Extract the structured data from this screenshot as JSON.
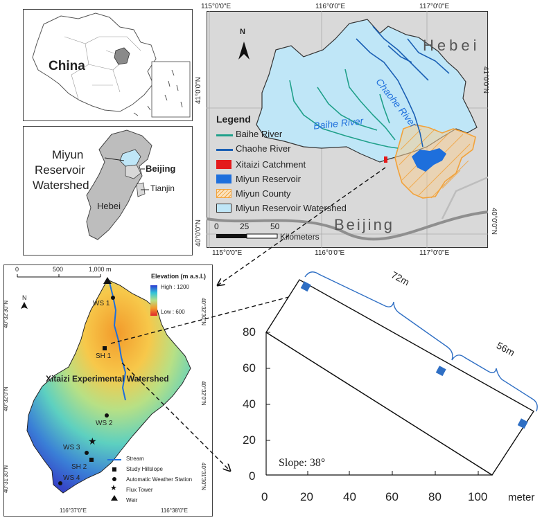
{
  "china_panel": {
    "label": "China"
  },
  "hebei_panel": {
    "watershed_label_1": "Miyun",
    "watershed_label_2": "Reservoir",
    "watershed_label_3": "Watershed",
    "beijing": "Beijing",
    "tianjin": "Tianjin",
    "hebei": "Hebei"
  },
  "main_map": {
    "lon_labels_top": [
      "115°0'0\"E",
      "116°0'0\"E",
      "117°0'0\"E"
    ],
    "lon_labels_bottom": [
      "115°0'0\"E",
      "116°0'0\"E",
      "117°0'0\"E"
    ],
    "lat_labels": [
      "41°0'0\"N",
      "40°0'0\"N"
    ],
    "hebei": "Hebei",
    "beijing": "Beijing",
    "baihe_river": "Baihe River",
    "chaohe_river": "Chaohe River",
    "north": "N",
    "legend": {
      "title": "Legend",
      "items": [
        {
          "label": "Baihe River",
          "color": "#1fa08a"
        },
        {
          "label": "Chaohe River",
          "color": "#1a5fb4"
        },
        {
          "label": "Xitaizi Catchment",
          "color": "#e41a1c"
        },
        {
          "label": "Miyun Reservoir",
          "color": "#1e6fdc"
        },
        {
          "label": "Miyun County",
          "color": "#f2a23a"
        },
        {
          "label": "Miyun Reservoir Watershed",
          "color": "#bfe6f7"
        }
      ]
    },
    "scale_ticks": [
      "0",
      "25",
      "50"
    ],
    "scale_unit": "Kilometers"
  },
  "watershed_map": {
    "scale_ticks": [
      "0",
      "500",
      "1,000 m"
    ],
    "elevation_title": "Elevation (m a.s.l.)",
    "elevation_high": "High : 1200",
    "elevation_low": "Low : 600",
    "north": "N",
    "title": "Xitaizi Experimental Watershed",
    "lat_labels_left": [
      "40°32'30\"N",
      "40°32'0\"N",
      "40°31'30\"N"
    ],
    "lat_labels_right": [
      "40°32'30\"N",
      "40°32'0\"N",
      "40°31'30\"N"
    ],
    "lon_labels": [
      "116°37'0\"E",
      "116°38'0\"E"
    ],
    "site_labels": [
      "WS 1",
      "SH 1",
      "WS 2",
      "WS 3",
      "SH 2",
      "WS 4"
    ],
    "legend": [
      {
        "label": "Stream",
        "symbol": "line"
      },
      {
        "label": "Study Hillslope",
        "symbol": "square"
      },
      {
        "label": "Automatic Weather Station",
        "symbol": "circle"
      },
      {
        "label": "Flux Tower",
        "symbol": "star"
      },
      {
        "label": "Weir",
        "symbol": "triangle"
      }
    ]
  },
  "hillslope": {
    "y_ticks": [
      "80",
      "60",
      "40",
      "20",
      "0"
    ],
    "x_ticks": [
      "0",
      "20",
      "40",
      "60",
      "80",
      "100"
    ],
    "x_unit": "meter",
    "slope_label": "Slope: 38°",
    "distance_1": "72m",
    "distance_2": "56m"
  }
}
